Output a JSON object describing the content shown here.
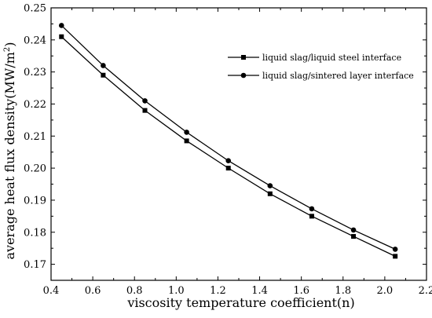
{
  "chart_data": {
    "type": "line",
    "xlabel": "viscosity temperature coefficient(n)",
    "ylabel_main": "average heat flux density(MW/m",
    "ylabel_sup": "2",
    "ylabel_tail": ")",
    "xlim": [
      0.4,
      2.2
    ],
    "ylim": [
      0.165,
      0.25
    ],
    "x_ticks": [
      "0.4",
      "0.6",
      "0.8",
      "1.0",
      "1.2",
      "1.4",
      "1.6",
      "1.8",
      "2.0",
      "2.2"
    ],
    "y_ticks": [
      "0.17",
      "0.18",
      "0.19",
      "0.20",
      "0.21",
      "0.22",
      "0.23",
      "0.24",
      "0.25"
    ],
    "grid": false,
    "legend_position": "top-right",
    "x": [
      0.45,
      0.65,
      0.85,
      1.05,
      1.25,
      1.45,
      1.65,
      1.85,
      2.05
    ],
    "series": [
      {
        "name": "liquid slag/liquid steel interface",
        "marker": "square",
        "values": [
          0.241,
          0.229,
          0.218,
          0.2085,
          0.2,
          0.192,
          0.185,
          0.1787,
          0.1725
        ]
      },
      {
        "name": "liquid slag/sintered layer interface",
        "marker": "circle",
        "values": [
          0.2445,
          0.232,
          0.221,
          0.2112,
          0.2023,
          0.1945,
          0.1873,
          0.1807,
          0.1747
        ]
      }
    ],
    "colors": {
      "line": "#000000",
      "background": "#ffffff"
    }
  }
}
